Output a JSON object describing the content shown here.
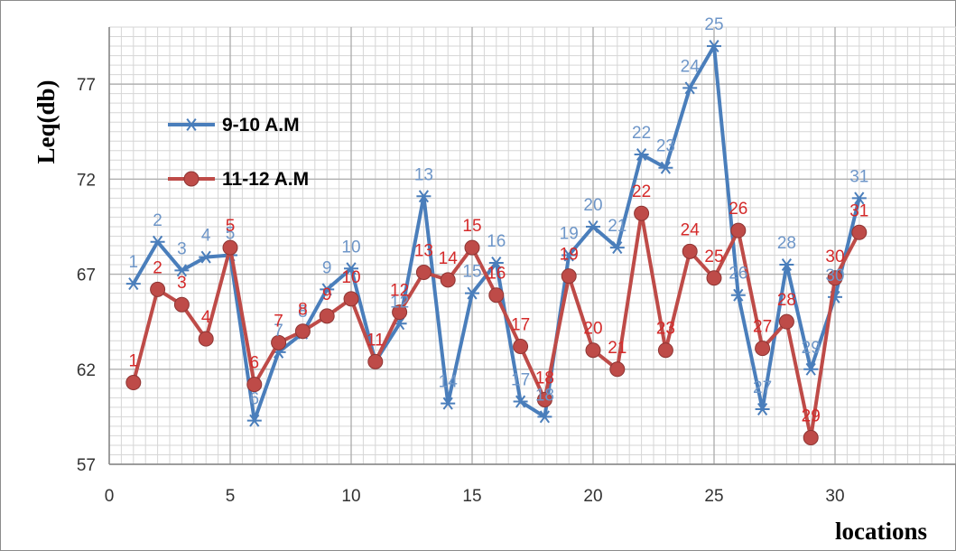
{
  "chart_data": {
    "type": "line",
    "title": "",
    "xlabel": "locations",
    "ylabel": "Leq(db)",
    "xlim": [
      0,
      35
    ],
    "ylim": [
      57,
      80
    ],
    "x_ticks": [
      0,
      5,
      10,
      15,
      20,
      25,
      30
    ],
    "y_ticks": [
      57,
      62,
      67,
      72,
      77
    ],
    "grid": true,
    "legend_position": "top-left",
    "x": [
      1,
      2,
      3,
      4,
      5,
      6,
      7,
      8,
      9,
      10,
      11,
      12,
      13,
      14,
      15,
      16,
      17,
      18,
      19,
      20,
      21,
      22,
      23,
      24,
      25,
      26,
      27,
      28,
      29,
      30,
      31
    ],
    "series": [
      {
        "name": "9-10 A.M",
        "color": "#4a7ebb",
        "marker": "star",
        "values": [
          66.5,
          68.7,
          67.2,
          67.9,
          68.0,
          59.3,
          62.9,
          63.9,
          66.2,
          67.3,
          62.4,
          64.4,
          71.1,
          60.2,
          66.0,
          67.6,
          60.3,
          59.5,
          68.0,
          69.5,
          68.4,
          73.3,
          72.6,
          76.8,
          79.0,
          65.9,
          59.9,
          67.5,
          62.0,
          65.8,
          71.0
        ]
      },
      {
        "name": "11-12 A.M",
        "color": "#be4b48",
        "marker": "circle",
        "values": [
          61.3,
          66.2,
          65.4,
          63.6,
          68.4,
          61.2,
          63.4,
          64.0,
          64.8,
          65.7,
          62.4,
          65.0,
          67.1,
          66.7,
          68.4,
          65.9,
          63.2,
          60.4,
          66.9,
          63.0,
          62.0,
          70.2,
          63.0,
          68.2,
          66.8,
          69.3,
          63.1,
          64.5,
          58.4,
          66.8,
          69.2
        ]
      }
    ]
  }
}
